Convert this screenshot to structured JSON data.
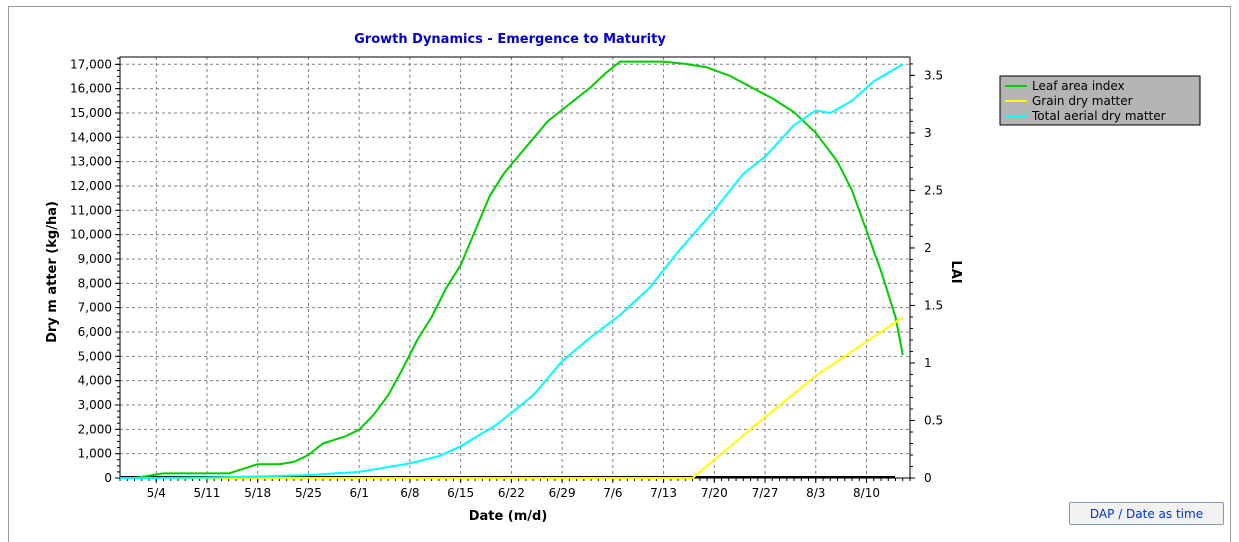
{
  "controls": {
    "toggle_label": "DAP / Date as time"
  },
  "colors": {
    "title": "#0000cc",
    "lai": "#00cc00",
    "grain": "#ffff00",
    "total": "#00ffff",
    "grid": "#808080",
    "legend_bg": "#b4b4b4"
  },
  "chart_data": {
    "type": "line",
    "title": "Growth Dynamics - Emergence to Maturity",
    "xlabel": "Date (m/d)",
    "ylabel": "Dry m atter (kg/ha)",
    "y2label": "LAI",
    "xticks": [
      "5/4",
      "5/11",
      "5/18",
      "5/25",
      "6/1",
      "6/8",
      "6/15",
      "6/22",
      "6/29",
      "7/6",
      "7/13",
      "7/20",
      "7/27",
      "8/3",
      "8/10"
    ],
    "yticks": [
      "0",
      "1,000",
      "2,000",
      "3,000",
      "4,000",
      "5,000",
      "6,000",
      "7,000",
      "8,000",
      "9,000",
      "10,000",
      "11,000",
      "12,000",
      "13,000",
      "14,000",
      "15,000",
      "16,000",
      "17,000"
    ],
    "y2ticks": [
      "0",
      "0.5",
      "1",
      "1.5",
      "2",
      "2.5",
      "3",
      "3.5"
    ],
    "xlim": [
      "04-29",
      "08-16"
    ],
    "ylim": [
      0,
      17300
    ],
    "y2lim": [
      0,
      3.66
    ],
    "grid": true,
    "legend_position": "right",
    "series": [
      {
        "name": "Leaf area index",
        "axis": "right",
        "x": [
          "04-29",
          "05-01",
          "05-03",
          "05-05",
          "05-08",
          "05-11",
          "05-14",
          "05-16",
          "05-18",
          "05-21",
          "05-23",
          "05-25",
          "05-27",
          "05-30",
          "06-01",
          "06-03",
          "06-05",
          "06-07",
          "06-09",
          "06-11",
          "06-13",
          "06-15",
          "06-17",
          "06-19",
          "06-21",
          "06-23",
          "06-25",
          "06-27",
          "06-29",
          "07-01",
          "07-03",
          "07-05",
          "07-07",
          "07-10",
          "07-13",
          "07-16",
          "07-19",
          "07-22",
          "07-25",
          "07-28",
          "07-31",
          "08-03",
          "08-06",
          "08-08",
          "08-10",
          "08-12",
          "08-14",
          "08-15"
        ],
        "y": [
          0,
          0,
          0.02,
          0.04,
          0.04,
          0.04,
          0.04,
          0.08,
          0.12,
          0.12,
          0.14,
          0.2,
          0.3,
          0.36,
          0.42,
          0.55,
          0.72,
          0.95,
          1.2,
          1.4,
          1.65,
          1.85,
          2.15,
          2.45,
          2.65,
          2.8,
          2.95,
          3.1,
          3.2,
          3.3,
          3.4,
          3.52,
          3.62,
          3.62,
          3.62,
          3.6,
          3.57,
          3.5,
          3.4,
          3.3,
          3.18,
          3.0,
          2.75,
          2.5,
          2.15,
          1.8,
          1.4,
          1.07
        ]
      },
      {
        "name": "Grain dry matter",
        "axis": "left",
        "x": [
          "04-29",
          "07-17",
          "07-27",
          "08-03",
          "08-10",
          "08-15"
        ],
        "y": [
          0,
          0,
          2500,
          4200,
          5600,
          6600
        ]
      },
      {
        "name": "Total aerial dry matter",
        "axis": "left",
        "x": [
          "04-29",
          "05-03",
          "05-11",
          "05-18",
          "05-25",
          "06-01",
          "06-08",
          "06-12",
          "06-15",
          "06-20",
          "06-25",
          "06-29",
          "07-03",
          "07-07",
          "07-11",
          "07-15",
          "07-20",
          "07-24",
          "07-27",
          "07-31",
          "08-03",
          "08-05",
          "08-08",
          "08-11",
          "08-15"
        ],
        "y": [
          0,
          0,
          20,
          60,
          120,
          250,
          600,
          900,
          1300,
          2200,
          3400,
          4800,
          5800,
          6700,
          7800,
          9300,
          11000,
          12500,
          13200,
          14500,
          15100,
          15000,
          15500,
          16300,
          17000
        ]
      }
    ]
  }
}
